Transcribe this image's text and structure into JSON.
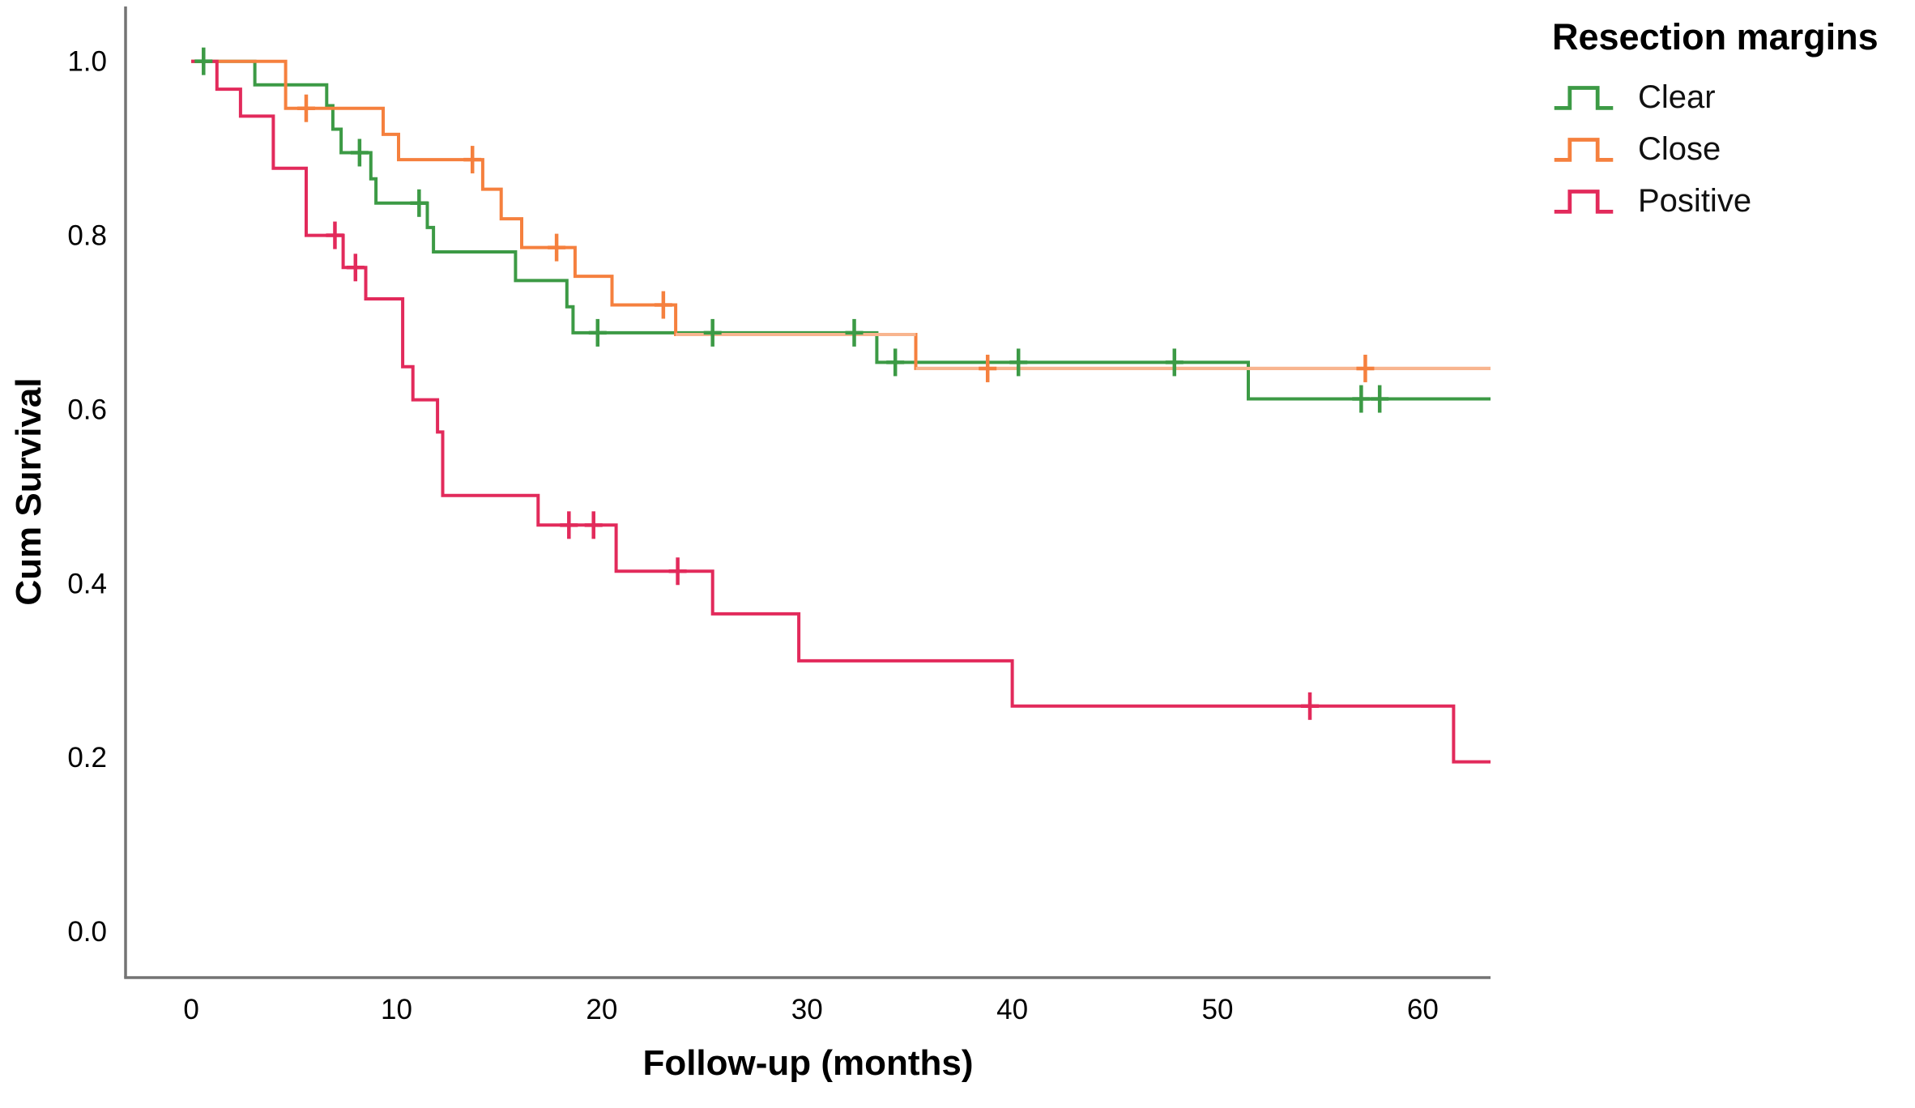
{
  "figure": {
    "background": "#ffffff",
    "axis_color": "#747474",
    "text_color": "#000000"
  },
  "chart_data": {
    "type": "line",
    "subtype": "kaplan-meier-step-survival",
    "title": "",
    "xlabel": "Follow-up (months)",
    "ylabel": "Cum Survival",
    "x_ticks": [
      0,
      10,
      20,
      30,
      40,
      50,
      60
    ],
    "y_ticks": [
      "0.0",
      "0.2",
      "0.4",
      "0.6",
      "0.8",
      "1.0"
    ],
    "xlim": [
      -3.2,
      63.3
    ],
    "ylim": [
      -0.053,
      1.063
    ],
    "grid": false,
    "legend": {
      "title": "Resection margins",
      "position": "top-right"
    },
    "series": [
      {
        "name": "Clear",
        "color": "#3C9A45",
        "steps": [
          [
            0,
            1.0
          ],
          [
            3.1,
            0.973
          ],
          [
            6.6,
            0.949
          ],
          [
            6.9,
            0.922
          ],
          [
            7.3,
            0.895
          ],
          [
            8.75,
            0.865
          ],
          [
            9.0,
            0.837
          ],
          [
            11.5,
            0.809
          ],
          [
            11.8,
            0.781
          ],
          [
            15.8,
            0.748
          ],
          [
            18.3,
            0.718
          ],
          [
            18.6,
            0.688
          ],
          [
            33.4,
            0.654
          ],
          [
            51.5,
            0.612
          ]
        ],
        "end_time": 63.3,
        "censors": [
          [
            0.6,
            1.0
          ],
          [
            8.2,
            0.895
          ],
          [
            11.1,
            0.837
          ],
          [
            19.8,
            0.688
          ],
          [
            25.4,
            0.688
          ],
          [
            32.3,
            0.688
          ],
          [
            34.3,
            0.654
          ],
          [
            40.3,
            0.654
          ],
          [
            47.9,
            0.654
          ],
          [
            57.0,
            0.612
          ],
          [
            57.9,
            0.612
          ]
        ]
      },
      {
        "name": "Close",
        "color": "#F5803E",
        "color_light": "#F8B58F",
        "light_from": 23.6,
        "steps": [
          [
            0,
            1.0
          ],
          [
            4.6,
            0.946
          ],
          [
            9.35,
            0.916
          ],
          [
            10.1,
            0.887
          ],
          [
            14.2,
            0.853
          ],
          [
            15.1,
            0.819
          ],
          [
            16.1,
            0.786
          ],
          [
            18.7,
            0.753
          ],
          [
            20.5,
            0.72
          ],
          [
            23.6,
            0.686
          ],
          [
            35.3,
            0.647
          ]
        ],
        "end_time": 63.3,
        "censors": [
          [
            5.6,
            0.946
          ],
          [
            13.7,
            0.887
          ],
          [
            17.8,
            0.786
          ],
          [
            23.0,
            0.72
          ],
          [
            38.8,
            0.647
          ],
          [
            57.2,
            0.647
          ]
        ]
      },
      {
        "name": "Positive",
        "color": "#E22A5B",
        "steps": [
          [
            0,
            1.0
          ],
          [
            1.25,
            0.968
          ],
          [
            2.4,
            0.937
          ],
          [
            4.0,
            0.877
          ],
          [
            5.6,
            0.8
          ],
          [
            7.4,
            0.763
          ],
          [
            8.5,
            0.727
          ],
          [
            10.3,
            0.649
          ],
          [
            10.8,
            0.611
          ],
          [
            12.0,
            0.574
          ],
          [
            12.25,
            0.501
          ],
          [
            16.9,
            0.467
          ],
          [
            20.7,
            0.414
          ],
          [
            25.4,
            0.365
          ],
          [
            29.6,
            0.311
          ],
          [
            40.0,
            0.259
          ],
          [
            61.5,
            0.195
          ]
        ],
        "end_time": 63.3,
        "censors": [
          [
            7.0,
            0.8
          ],
          [
            8.0,
            0.763
          ],
          [
            18.4,
            0.467
          ],
          [
            19.6,
            0.467
          ],
          [
            23.7,
            0.414
          ],
          [
            54.5,
            0.259
          ]
        ]
      }
    ]
  }
}
